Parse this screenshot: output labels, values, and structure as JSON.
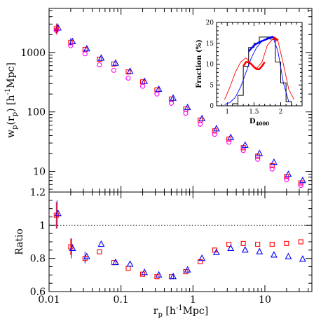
{
  "chart_data": [
    {
      "type": "scatter",
      "panel": "top",
      "ylabel": "w_p(r_p) [h^-1Mpc]",
      "ylabel_parts": {
        "main": "w",
        "sub1": "p",
        "paren_open": "(r",
        "sub2": "p",
        "paren_close": ") [h",
        "sup": "-1",
        "tail": "Mpc]"
      },
      "xscale": "log",
      "yscale": "log",
      "xlim": [
        0.01,
        45
      ],
      "ylim": [
        4.5,
        5500
      ],
      "ytick_labels": [
        "10",
        "100",
        "1000"
      ],
      "ytick_values": [
        10,
        100,
        1000
      ],
      "x": [
        0.0126,
        0.02,
        0.0316,
        0.0501,
        0.0794,
        0.126,
        0.2,
        0.316,
        0.501,
        0.794,
        1.26,
        2.0,
        3.16,
        5.01,
        7.94,
        12.6,
        20.0,
        31.6
      ],
      "series": [
        {
          "marker": "square",
          "color": "#ff0000",
          "values": [
            2500,
            1480,
            1120,
            770,
            640,
            470,
            320,
            235,
            165,
            112,
            73,
            48,
            35,
            25,
            18,
            12.5,
            8.2,
            6.4
          ]
        },
        {
          "marker": "triangle",
          "color": "#0000ff",
          "values": [
            2580,
            1520,
            1150,
            800,
            660,
            480,
            325,
            240,
            170,
            118,
            77,
            52,
            37,
            27.5,
            20,
            14.2,
            8.9,
            7.0
          ]
        },
        {
          "marker": "circle",
          "color": "#ff00ff",
          "values": [
            2350,
            1300,
            950,
            620,
            500,
            370,
            270,
            200,
            140,
            95,
            62,
            42,
            31,
            22.5,
            16,
            11,
            7.3,
            5.8
          ]
        }
      ]
    },
    {
      "type": "scatter",
      "panel": "bottom",
      "ylabel": "Ratio",
      "xlabel_parts": {
        "main": "r",
        "sub": "p",
        "open": " [h",
        "sup": "-1",
        "tail": "Mpc]"
      },
      "xscale": "log",
      "xlim": [
        0.01,
        45
      ],
      "ylim": [
        0.6,
        1.2
      ],
      "ytick_labels": [
        "0.6",
        "0.8",
        "1",
        "1.2"
      ],
      "ytick_values": [
        0.6,
        0.8,
        1.0,
        1.2
      ],
      "xtick_labels": [
        "0.01",
        "0.1",
        "1",
        "10"
      ],
      "xtick_values": [
        0.01,
        0.1,
        1,
        10
      ],
      "reference_line": 1.0,
      "x": [
        0.0126,
        0.02,
        0.0316,
        0.0501,
        0.0794,
        0.126,
        0.2,
        0.316,
        0.501,
        0.794,
        1.26,
        2.0,
        3.16,
        5.01,
        7.94,
        12.6,
        20.0,
        31.6
      ],
      "series": [
        {
          "marker": "square",
          "color": "#ff0000",
          "values": [
            1.06,
            0.87,
            0.8,
            0.84,
            0.775,
            0.74,
            0.705,
            0.69,
            0.69,
            0.72,
            0.78,
            0.85,
            0.885,
            0.89,
            0.885,
            0.885,
            0.89,
            0.9
          ]
        },
        {
          "marker": "triangle",
          "color": "#0000ff",
          "values": [
            1.07,
            0.86,
            0.81,
            0.885,
            0.775,
            0.765,
            0.715,
            0.7,
            0.69,
            0.73,
            0.8,
            0.835,
            0.86,
            0.85,
            0.84,
            0.82,
            0.81,
            0.795
          ]
        }
      ],
      "error_bars": [
        {
          "x": 0.0126,
          "lo": 0.98,
          "hi": 1.14,
          "color": "#ff0000"
        },
        {
          "x": 0.0129,
          "lo": 0.98,
          "hi": 1.15,
          "color": "#0000ff"
        },
        {
          "x": 0.02,
          "lo": 0.82,
          "hi": 0.92,
          "color": "#ff0000"
        },
        {
          "x": 0.0205,
          "lo": 0.8,
          "hi": 0.92,
          "color": "#0000ff"
        },
        {
          "x": 0.0316,
          "lo": 0.77,
          "hi": 0.84,
          "color": "#0000ff"
        }
      ]
    },
    {
      "type": "line",
      "panel": "inset",
      "ylabel": "Fraction (%)",
      "xlabel_parts": {
        "main": "D",
        "sub": "4000"
      },
      "xlim": [
        0.8,
        2.4
      ],
      "ylim": [
        0,
        20
      ],
      "xtick_labels": [
        "1",
        "1.5",
        "2"
      ],
      "xtick_values": [
        1,
        1.5,
        2
      ],
      "ytick_labels": [
        "0",
        "5",
        "10",
        "15",
        "20"
      ],
      "ytick_values": [
        0,
        5,
        10,
        15,
        20
      ],
      "histogram_edges": [
        1.1,
        1.2,
        1.3,
        1.4,
        1.5,
        1.6,
        1.7,
        1.8,
        1.9,
        2.0,
        2.1,
        2.2
      ],
      "histogram_values": [
        0.5,
        2.5,
        9.5,
        14.0,
        15.0,
        16.5,
        16.5,
        16.0,
        10.5,
        5.5,
        1.0
      ],
      "series": [
        {
          "color": "#ff0000",
          "width": 0.9,
          "x": [
            0.95,
            1.05,
            1.15,
            1.25,
            1.35,
            1.45,
            1.55,
            1.65,
            1.75,
            1.85,
            1.95,
            2.05,
            2.15,
            2.25
          ],
          "values": [
            1.5,
            4.5,
            8.0,
            10.5,
            11.5,
            10.0,
            9.0,
            10.5,
            14.5,
            16.0,
            15.5,
            10.0,
            4.0,
            1.5
          ]
        },
        {
          "color": "#ff0000",
          "width": 2.6,
          "x": [
            1.3,
            1.35,
            1.4,
            1.45,
            1.5,
            1.55,
            1.6,
            1.65,
            1.7
          ],
          "values": [
            9.5,
            10.5,
            10.5,
            10.0,
            9.3,
            8.8,
            8.8,
            9.5,
            10.5
          ]
        },
        {
          "color": "#ff0000",
          "width": 2.6,
          "x": [
            1.85,
            1.9,
            1.95
          ],
          "values": [
            16.5,
            16.2,
            15.7
          ]
        },
        {
          "color": "#0000ff",
          "width": 2.4,
          "x": [
            1.4,
            1.5,
            1.6,
            1.7,
            1.8,
            1.85
          ],
          "values": [
            13.0,
            14.5,
            15.3,
            15.8,
            16.3,
            16.6
          ]
        },
        {
          "color": "#0000ff",
          "width": 0.9,
          "x": [
            0.95,
            1.05,
            1.15,
            1.25,
            1.35,
            1.45,
            1.55,
            1.65,
            1.75,
            1.85,
            1.95,
            2.05,
            2.15
          ],
          "values": [
            0.3,
            0.8,
            2.0,
            4.5,
            8.0,
            11.5,
            14.0,
            15.5,
            16.3,
            16.7,
            13.0,
            5.5,
            1.0
          ]
        }
      ]
    }
  ]
}
